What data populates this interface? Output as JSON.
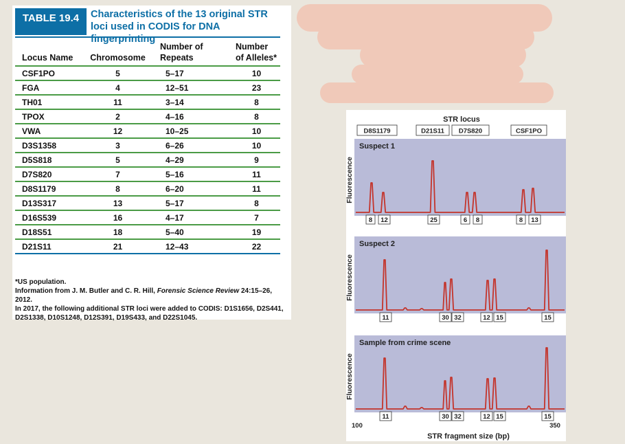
{
  "table": {
    "number": "TABLE 19.4",
    "title": "Characteristics of the 13 original STR loci used in CODIS for DNA fingerprinting",
    "headers": [
      "Locus Name",
      "Chromosome",
      "Number of Repeats",
      "Number of Alleles*"
    ],
    "rows": [
      [
        "CSF1PO",
        "5",
        "5–17",
        "10"
      ],
      [
        "FGA",
        "4",
        "12–51",
        "23"
      ],
      [
        "TH01",
        "11",
        "3–14",
        "8"
      ],
      [
        "TPOX",
        "2",
        "4–16",
        "8"
      ],
      [
        "VWA",
        "12",
        "10–25",
        "10"
      ],
      [
        "D3S1358",
        "3",
        "6–26",
        "10"
      ],
      [
        "D5S818",
        "5",
        "4–29",
        "9"
      ],
      [
        "D7S820",
        "7",
        "5–16",
        "11"
      ],
      [
        "D8S1179",
        "8",
        "6–20",
        "11"
      ],
      [
        "D13S317",
        "13",
        "5–17",
        "8"
      ],
      [
        "D16S539",
        "16",
        "4–17",
        "7"
      ],
      [
        "D18S51",
        "18",
        "5–40",
        "19"
      ],
      [
        "D21S11",
        "21",
        "12–43",
        "22"
      ]
    ],
    "footnote": "*US population.",
    "source_prefix": "Information from J. M. Butler and C. R. Hill, ",
    "source_journal": "Forensic Science Review",
    "source_suffix": " 24:15–26, 2012.",
    "additional": "In 2017, the following additional STR loci were added to CODIS: D1S1656, D2S441, D2S1338, D10S1248, D12S391, D19S433, and D22S1045."
  },
  "figure": {
    "locus_title": "STR locus",
    "loci": [
      "D8S1179",
      "D21S11",
      "D7S820",
      "CSF1PO"
    ],
    "y_label": "Fluorescence",
    "x_label": "STR fragment size (bp)",
    "x_min_label": "100",
    "x_max_label": "350",
    "colors": {
      "panel": "#b9bbd8",
      "trace": "#c4342b",
      "label_box": "#ffffff"
    },
    "panels": [
      {
        "title": "Suspect 1",
        "alleles": [
          "8",
          "12",
          "25",
          "6",
          "8",
          "8",
          "13"
        ]
      },
      {
        "title": "Suspect 2",
        "alleles": [
          "11",
          "30",
          "32",
          "12",
          "15",
          "15"
        ]
      },
      {
        "title": "Sample from crime scene",
        "alleles": [
          "11",
          "30",
          "32",
          "12",
          "15",
          "15"
        ]
      }
    ]
  }
}
